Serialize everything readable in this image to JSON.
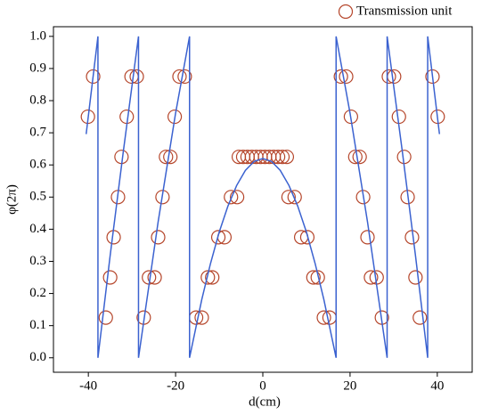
{
  "chart_data": {
    "type": "scatter",
    "xlabel": "d(cm)",
    "ylabel": "φ(2π)",
    "xlim": [
      -48,
      48
    ],
    "ylim": [
      -0.045,
      1.03
    ],
    "xticks": [
      -40,
      -20,
      0,
      20,
      40
    ],
    "yticks": [
      {
        "value": 0,
        "label": "0.0"
      },
      {
        "value": 0.1,
        "label": "0.1"
      },
      {
        "value": 0.2,
        "label": "0.2"
      },
      {
        "value": 0.3,
        "label": "0.3"
      },
      {
        "value": 0.4,
        "label": "0.4"
      },
      {
        "value": 0.5,
        "label": "0.5"
      },
      {
        "value": 0.6,
        "label": "0.6"
      },
      {
        "value": 0.7,
        "label": "0.7"
      },
      {
        "value": 0.8,
        "label": "0.8"
      },
      {
        "value": 0.9,
        "label": "0.9"
      },
      {
        "value": 1,
        "label": "1.0"
      }
    ],
    "grid": false,
    "legend": "top-right",
    "series": [
      {
        "name": "Transmission unit",
        "type": "scatter",
        "color": "#b5452a",
        "x": [
          -40.1,
          -38.9,
          -36,
          -35,
          -34.2,
          -33.2,
          -32.4,
          -31.2,
          -30.1,
          -28.9,
          -27.3,
          -26.1,
          -24.8,
          -24,
          -23,
          -22.2,
          -21.2,
          -20.2,
          -19.1,
          -17.9,
          -15.3,
          -14,
          -12.6,
          -11.6,
          -10.2,
          -8.8,
          -7.3,
          -5.9,
          -5.5,
          -4.5,
          -3.5,
          -2.5,
          -1.5,
          -0.5,
          0.5,
          1.5,
          2.5,
          3.5,
          4.5,
          5.5,
          5.9,
          7.3,
          8.8,
          10.2,
          11.6,
          12.6,
          14,
          15.3,
          17.9,
          19.1,
          20.2,
          21.2,
          22.2,
          23,
          24,
          24.8,
          26.1,
          27.3,
          28.9,
          30.1,
          31.2,
          32.4,
          33.2,
          34.2,
          35,
          36,
          38.9,
          40.1
        ],
        "values": [
          0.75,
          0.875,
          0.125,
          0.25,
          0.375,
          0.5,
          0.625,
          0.75,
          0.875,
          0.875,
          0.125,
          0.25,
          0.25,
          0.375,
          0.5,
          0.625,
          0.625,
          0.75,
          0.875,
          0.875,
          0.125,
          0.125,
          0.25,
          0.25,
          0.375,
          0.375,
          0.5,
          0.5,
          0.625,
          0.625,
          0.625,
          0.625,
          0.625,
          0.625,
          0.625,
          0.625,
          0.625,
          0.625,
          0.625,
          0.625,
          0.5,
          0.5,
          0.375,
          0.375,
          0.25,
          0.25,
          0.125,
          0.125,
          0.875,
          0.875,
          0.75,
          0.625,
          0.625,
          0.5,
          0.375,
          0.25,
          0.25,
          0.125,
          0.875,
          0.875,
          0.75,
          0.625,
          0.5,
          0.375,
          0.25,
          0.125,
          0.875,
          0.75
        ]
      },
      {
        "type": "line",
        "color": "#3b62d0",
        "x": [
          -40.5,
          -37.8,
          -37.8,
          -35,
          -32,
          -28.5,
          -28.5,
          -24,
          -20,
          -16.8,
          -16.8,
          -14,
          -12,
          -10,
          -8,
          -6,
          -4,
          -2,
          0,
          2,
          4,
          6,
          8,
          10,
          12,
          14,
          16.8,
          16.8,
          20,
          24,
          28.5,
          28.5,
          32,
          35,
          37.8,
          37.8,
          40.5
        ],
        "values": [
          0.696,
          1,
          0,
          0.318,
          0.64,
          1,
          0,
          0.423,
          0.761,
          1,
          0,
          0.181,
          0.293,
          0.391,
          0.472,
          0.536,
          0.583,
          0.611,
          0.62,
          0.611,
          0.583,
          0.536,
          0.472,
          0.391,
          0.293,
          0.181,
          0,
          1,
          0.761,
          0.423,
          0,
          1,
          0.64,
          0.318,
          0,
          1,
          0.696
        ]
      }
    ]
  }
}
